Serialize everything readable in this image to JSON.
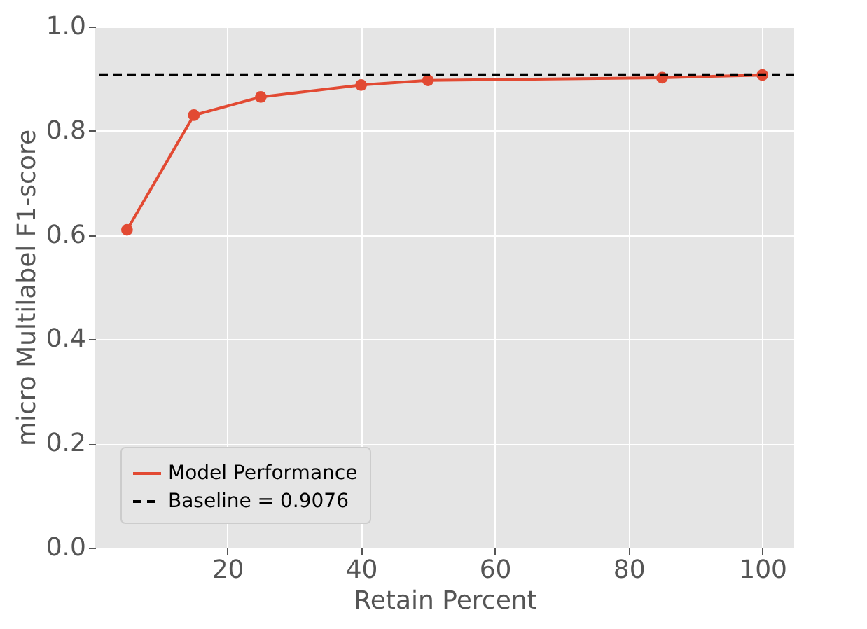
{
  "chart_data": {
    "type": "line",
    "xlabel": "Retain Percent",
    "ylabel": "micro Multilabel F1-score",
    "x": [
      5,
      15,
      25,
      40,
      50,
      85,
      100
    ],
    "series": [
      {
        "name": "Model Performance",
        "color": "#e24a33",
        "values": [
          0.61,
          0.83,
          0.865,
          0.888,
          0.897,
          0.902,
          0.907
        ]
      }
    ],
    "ref_lines": [
      {
        "axis": "y",
        "value": 0.9076,
        "label": "Baseline = 0.9076",
        "color": "#000000",
        "line_style": "dashed"
      }
    ],
    "xlim": [
      0.25,
      104.75
    ],
    "xticks": [
      20,
      40,
      60,
      80,
      100
    ],
    "ylim": [
      0,
      1
    ],
    "yticks": [
      {
        "value": 0,
        "label": "0.0"
      },
      0.2,
      0.4,
      0.6,
      0.8,
      {
        "value": 1,
        "label": "1.0"
      }
    ],
    "grid": true,
    "legend": "bottom left",
    "marker": "circle",
    "line_style": "solid"
  }
}
